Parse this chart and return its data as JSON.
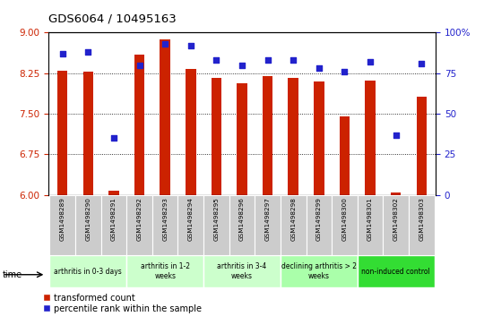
{
  "title": "GDS6064 / 10495163",
  "samples": [
    "GSM1498289",
    "GSM1498290",
    "GSM1498291",
    "GSM1498292",
    "GSM1498293",
    "GSM1498294",
    "GSM1498295",
    "GSM1498296",
    "GSM1498297",
    "GSM1498298",
    "GSM1498299",
    "GSM1498300",
    "GSM1498301",
    "GSM1498302",
    "GSM1498303"
  ],
  "bar_values": [
    8.3,
    8.28,
    6.08,
    8.6,
    8.88,
    8.32,
    8.17,
    8.07,
    8.19,
    8.17,
    8.1,
    7.45,
    8.12,
    6.05,
    7.82
  ],
  "scatter_values": [
    87,
    88,
    35,
    80,
    93,
    92,
    83,
    80,
    83,
    83,
    78,
    76,
    82,
    37,
    81
  ],
  "ylim_left": [
    6,
    9
  ],
  "ylim_right": [
    0,
    100
  ],
  "yticks_left": [
    6,
    6.75,
    7.5,
    8.25,
    9
  ],
  "yticks_right": [
    0,
    25,
    50,
    75,
    100
  ],
  "bar_color": "#cc2200",
  "scatter_color": "#2222cc",
  "groups": [
    {
      "label": "arthritis in 0-3 days",
      "start": 0,
      "end": 3,
      "color": "#ccffcc"
    },
    {
      "label": "arthritis in 1-2\nweeks",
      "start": 3,
      "end": 6,
      "color": "#ccffcc"
    },
    {
      "label": "arthritis in 3-4\nweeks",
      "start": 6,
      "end": 9,
      "color": "#ccffcc"
    },
    {
      "label": "declining arthritis > 2\nweeks",
      "start": 9,
      "end": 12,
      "color": "#aaffaa"
    },
    {
      "label": "non-induced control",
      "start": 12,
      "end": 15,
      "color": "#33dd33"
    }
  ],
  "tick_bg_color": "#cccccc",
  "legend_red_label": "transformed count",
  "legend_blue_label": "percentile rank within the sample",
  "time_label": "time"
}
